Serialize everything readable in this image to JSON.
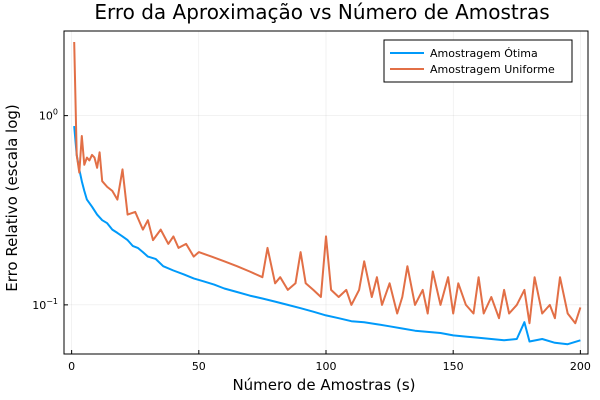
{
  "chart_data": {
    "type": "line",
    "title": "Erro da Aproximação vs Número de Amostras",
    "xlabel": "Número de Amostras (s)",
    "ylabel": "Erro Relativo (escala log)",
    "xlim": [
      -3,
      203
    ],
    "ylim": [
      0.055,
      2.8
    ],
    "yscale": "log",
    "xticks": [
      {
        "value": 0,
        "label": "0"
      },
      {
        "value": 50,
        "label": "50"
      },
      {
        "value": 100,
        "label": "100"
      },
      {
        "value": 150,
        "label": "150"
      },
      {
        "value": 200,
        "label": "200"
      }
    ],
    "yticks": [
      {
        "value": 0.1,
        "base": "10",
        "exp": "−1"
      },
      {
        "value": 1,
        "base": "10",
        "exp": "0"
      }
    ],
    "grid": true,
    "legend": "top-right",
    "series": [
      {
        "name": "Amostragem Ótima",
        "color": "#009AFA",
        "x": [
          1,
          2,
          3,
          4,
          5,
          6,
          8,
          10,
          12,
          14,
          16,
          18,
          20,
          22,
          24,
          26,
          28,
          30,
          33,
          36,
          40,
          44,
          48,
          52,
          56,
          60,
          65,
          70,
          75,
          80,
          85,
          90,
          95,
          100,
          105,
          110,
          115,
          120,
          125,
          130,
          135,
          140,
          145,
          150,
          155,
          160,
          165,
          170,
          175,
          178,
          180,
          185,
          190,
          195,
          200
        ],
        "y": [
          0.88,
          0.62,
          0.52,
          0.45,
          0.4,
          0.36,
          0.33,
          0.3,
          0.28,
          0.27,
          0.25,
          0.24,
          0.23,
          0.22,
          0.205,
          0.2,
          0.19,
          0.18,
          0.175,
          0.16,
          0.152,
          0.145,
          0.138,
          0.133,
          0.128,
          0.122,
          0.117,
          0.112,
          0.108,
          0.104,
          0.1,
          0.096,
          0.092,
          0.088,
          0.085,
          0.082,
          0.081,
          0.079,
          0.077,
          0.075,
          0.073,
          0.072,
          0.071,
          0.069,
          0.068,
          0.067,
          0.066,
          0.065,
          0.066,
          0.081,
          0.064,
          0.066,
          0.063,
          0.062,
          0.065
        ]
      },
      {
        "name": "Amostragem Uniforme",
        "color": "#E26F46",
        "x": [
          1,
          2,
          3,
          4,
          5,
          6,
          7,
          8,
          9,
          10,
          11,
          12,
          14,
          16,
          18,
          20,
          22,
          25,
          28,
          30,
          32,
          35,
          38,
          40,
          42,
          45,
          48,
          50,
          55,
          60,
          65,
          70,
          75,
          77,
          80,
          82,
          85,
          88,
          90,
          92,
          95,
          98,
          100,
          102,
          105,
          108,
          110,
          113,
          115,
          118,
          120,
          122,
          125,
          128,
          130,
          132,
          135,
          138,
          140,
          142,
          145,
          148,
          150,
          152,
          155,
          158,
          160,
          162,
          165,
          168,
          170,
          172,
          175,
          178,
          180,
          182,
          185,
          188,
          190,
          192,
          195,
          198,
          200
        ],
        "y": [
          2.45,
          0.62,
          0.5,
          0.78,
          0.55,
          0.6,
          0.58,
          0.62,
          0.6,
          0.53,
          0.64,
          0.45,
          0.42,
          0.4,
          0.36,
          0.52,
          0.3,
          0.31,
          0.25,
          0.28,
          0.22,
          0.25,
          0.21,
          0.23,
          0.2,
          0.21,
          0.18,
          0.19,
          0.18,
          0.17,
          0.16,
          0.15,
          0.14,
          0.2,
          0.13,
          0.14,
          0.12,
          0.13,
          0.19,
          0.13,
          0.12,
          0.11,
          0.23,
          0.12,
          0.11,
          0.12,
          0.1,
          0.12,
          0.17,
          0.11,
          0.14,
          0.1,
          0.13,
          0.09,
          0.11,
          0.16,
          0.1,
          0.12,
          0.09,
          0.15,
          0.1,
          0.14,
          0.09,
          0.13,
          0.1,
          0.09,
          0.14,
          0.09,
          0.11,
          0.085,
          0.12,
          0.09,
          0.1,
          0.12,
          0.08,
          0.14,
          0.09,
          0.1,
          0.085,
          0.14,
          0.09,
          0.08,
          0.097
        ]
      }
    ]
  }
}
